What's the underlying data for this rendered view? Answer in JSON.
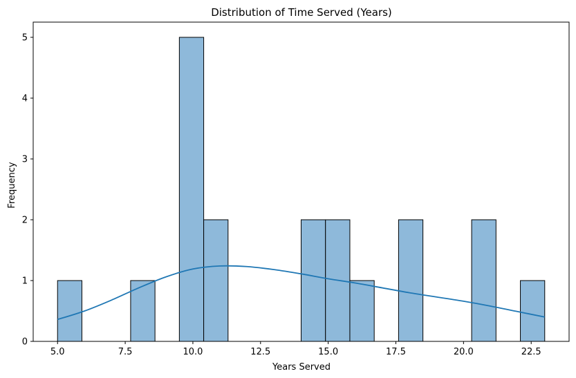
{
  "chart_data": {
    "type": "bar",
    "title": "Distribution of Time Served (Years)",
    "xlabel": "Years Served",
    "ylabel": "Frequency",
    "xlim": [
      4.1,
      23.9
    ],
    "ylim": [
      0,
      5.25
    ],
    "bin_edges": [
      5.0,
      5.9,
      6.8,
      7.7,
      8.6,
      9.5,
      10.4,
      11.3,
      12.2,
      13.1,
      14.0,
      14.9,
      15.8,
      16.7,
      17.6,
      18.5,
      19.4,
      20.3,
      21.2,
      22.1,
      23.0
    ],
    "counts": [
      1,
      0,
      0,
      1,
      0,
      5,
      2,
      0,
      0,
      0,
      2,
      2,
      1,
      0,
      2,
      0,
      0,
      2,
      0,
      1
    ],
    "x_ticks": [
      5.0,
      7.5,
      10.0,
      12.5,
      15.0,
      17.5,
      20.0,
      22.5
    ],
    "x_tick_labels": [
      "5.0",
      "7.5",
      "10.0",
      "12.5",
      "15.0",
      "17.5",
      "20.0",
      "22.5"
    ],
    "y_ticks": [
      0,
      1,
      2,
      3,
      4,
      5
    ],
    "y_tick_labels": [
      "0",
      "1",
      "2",
      "3",
      "4",
      "5"
    ],
    "kde": {
      "x": [
        5.0,
        6.0,
        7.0,
        8.0,
        9.0,
        10.0,
        11.0,
        12.0,
        13.0,
        14.0,
        15.0,
        16.0,
        17.0,
        18.0,
        19.0,
        20.0,
        21.0,
        22.0,
        23.0
      ],
      "y": [
        0.36,
        0.5,
        0.68,
        0.88,
        1.06,
        1.19,
        1.24,
        1.23,
        1.18,
        1.11,
        1.03,
        0.96,
        0.88,
        0.8,
        0.73,
        0.66,
        0.58,
        0.49,
        0.4
      ]
    },
    "grid": false,
    "colors": {
      "bar_fill": "#8eb9da",
      "bar_edge": "#000000",
      "kde_line": "#1f77b4"
    }
  }
}
